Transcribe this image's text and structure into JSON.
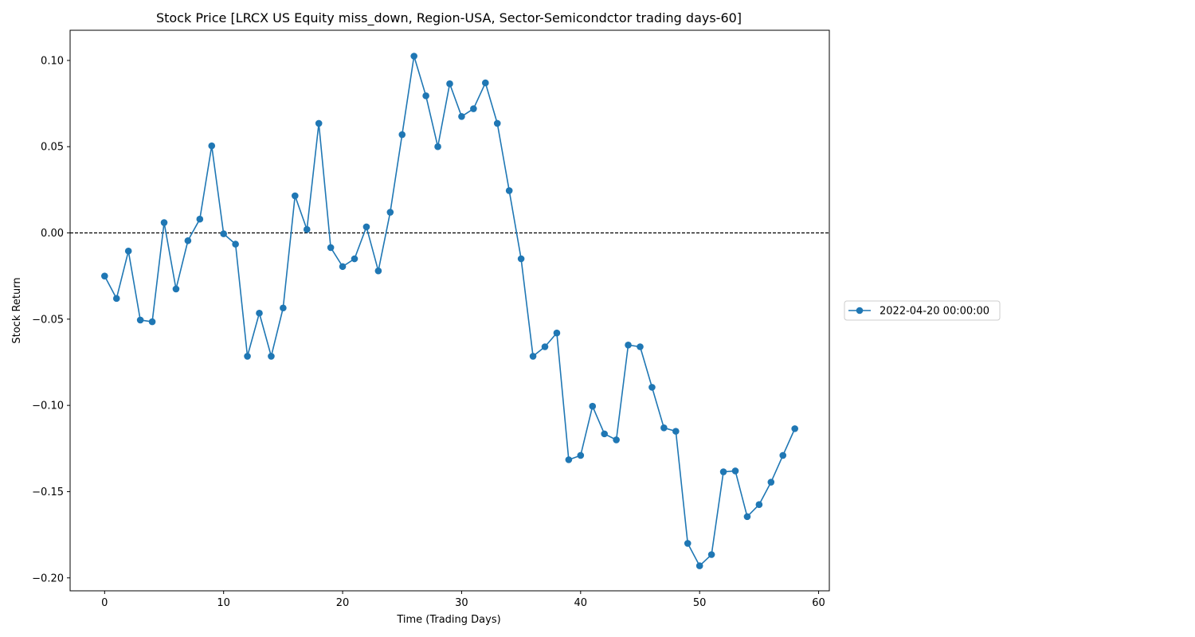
{
  "chart_data": {
    "type": "line",
    "title": "Stock Price [LRCX US Equity miss_down, Region-USA, Sector-Semicondctor trading days-60]",
    "xlabel": "Time (Trading Days)",
    "ylabel": "Stock Return",
    "xlim": [
      -2.9,
      60.9
    ],
    "ylim": [
      -0.2075,
      0.1175
    ],
    "xticks": [
      0,
      10,
      20,
      30,
      40,
      50,
      60
    ],
    "xtick_labels": [
      "0",
      "10",
      "20",
      "30",
      "40",
      "50",
      "60"
    ],
    "yticks": [
      0.1,
      0.05,
      0.0,
      -0.05,
      -0.1,
      -0.15,
      -0.2
    ],
    "ytick_labels": [
      "0.10",
      "0.05",
      "0.00",
      "−0.05",
      "−0.10",
      "−0.15",
      "−0.20"
    ],
    "reference_line": {
      "y": 0.0,
      "style": "dashed",
      "color": "#000000"
    },
    "grid": false,
    "legend_position": "right-center",
    "series": [
      {
        "name": "2022-04-20 00:00:00",
        "color": "#1f77b4",
        "marker": "circle",
        "x": [
          0,
          1,
          2,
          3,
          4,
          5,
          6,
          7,
          8,
          9,
          10,
          11,
          12,
          13,
          14,
          15,
          16,
          17,
          18,
          19,
          20,
          21,
          22,
          23,
          24,
          25,
          26,
          27,
          28,
          29,
          30,
          31,
          32,
          33,
          34,
          35,
          36,
          37,
          38,
          39,
          40,
          41,
          42,
          43,
          44,
          45,
          46,
          47,
          48,
          49,
          50,
          51,
          52,
          53,
          54,
          55,
          56,
          57,
          58
        ],
        "values": [
          -0.025,
          -0.038,
          -0.0105,
          -0.0505,
          -0.0515,
          0.006,
          -0.0325,
          -0.0045,
          0.008,
          0.0505,
          -0.0005,
          -0.0065,
          -0.0715,
          -0.0465,
          -0.0715,
          -0.0435,
          0.0215,
          0.002,
          0.0635,
          -0.0085,
          -0.0195,
          -0.015,
          0.0035,
          -0.022,
          0.012,
          0.057,
          0.1025,
          0.0795,
          0.05,
          0.0865,
          0.0675,
          0.072,
          0.087,
          0.0635,
          0.0245,
          -0.015,
          -0.0715,
          -0.066,
          -0.058,
          -0.1315,
          -0.129,
          -0.1005,
          -0.1165,
          -0.12,
          -0.065,
          -0.066,
          -0.0895,
          -0.113,
          -0.115,
          -0.18,
          -0.193,
          -0.1865,
          -0.1385,
          -0.138,
          -0.1645,
          -0.1575,
          -0.1445,
          -0.129,
          -0.1135
        ]
      }
    ]
  }
}
